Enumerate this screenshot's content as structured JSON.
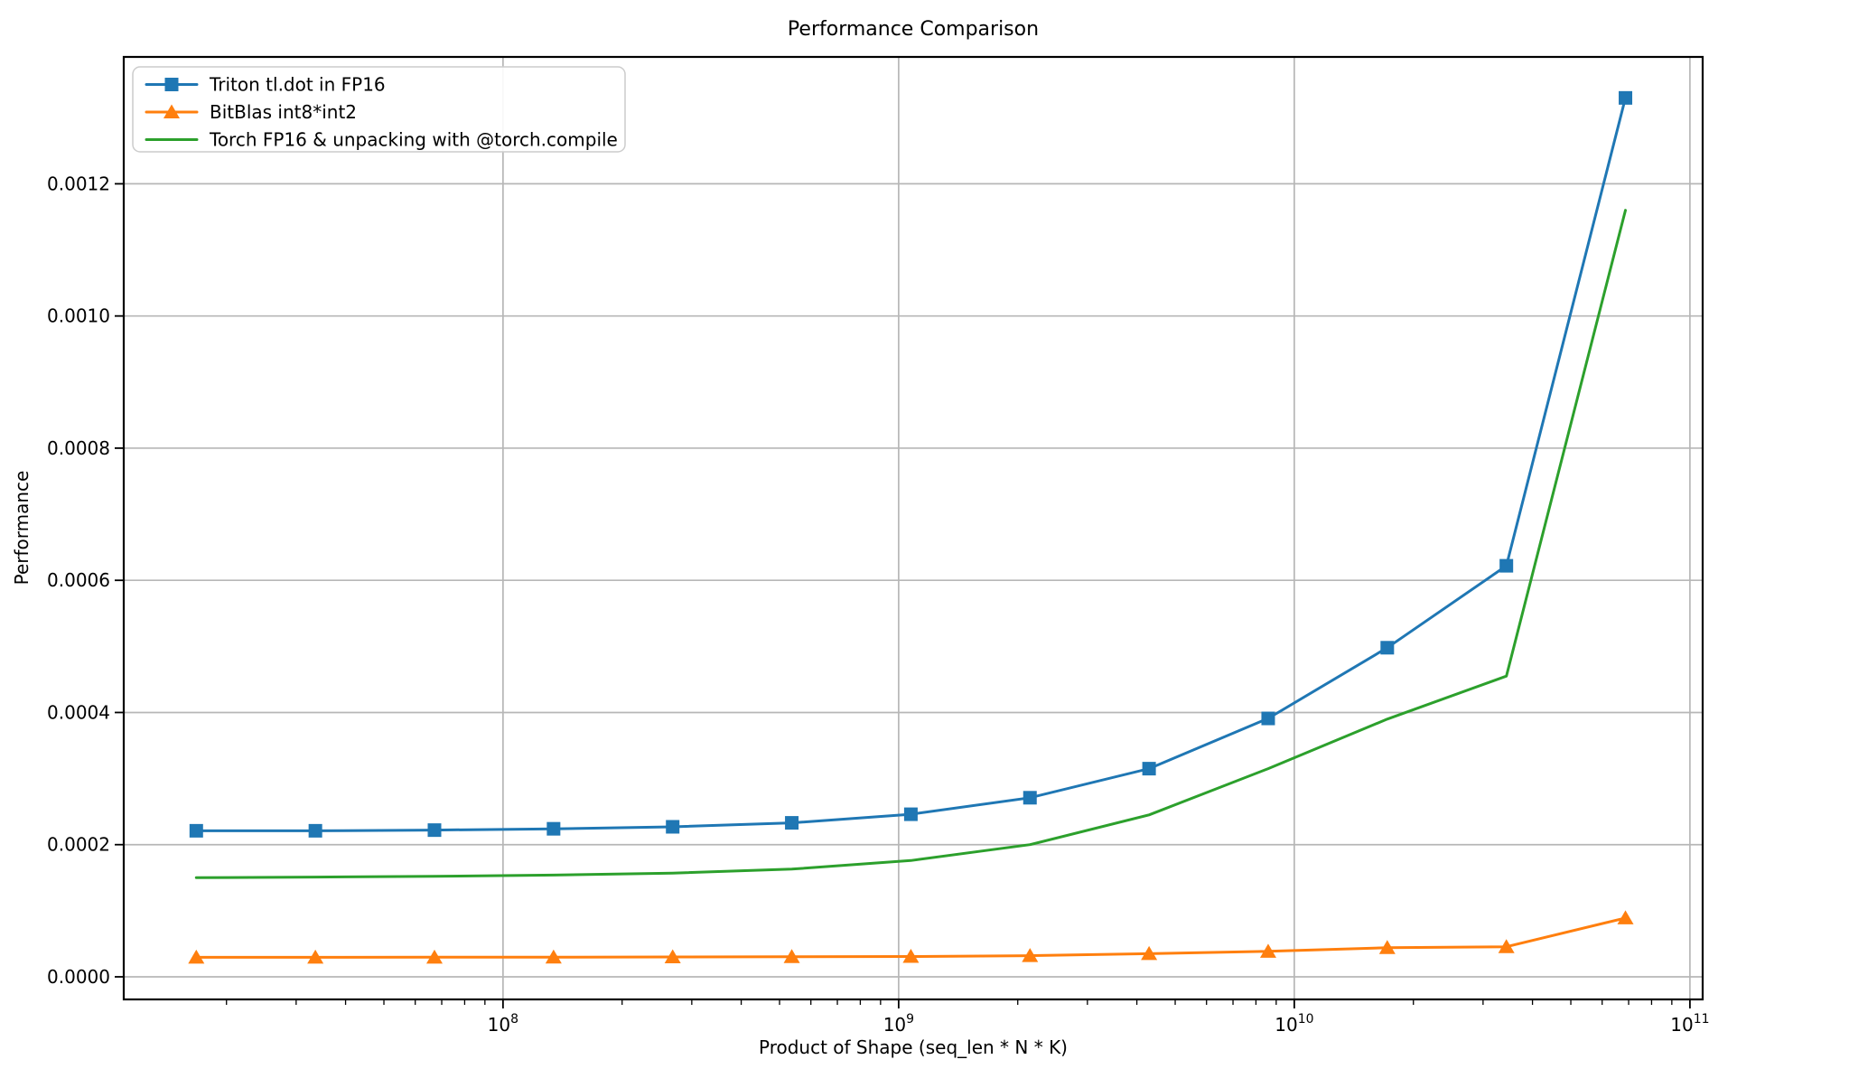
{
  "figure": {
    "background": "#ffffff",
    "title": "Performance Comparison"
  },
  "chart_data": {
    "type": "line",
    "title": "Performance Comparison",
    "xlabel": "Product of Shape (seq_len * N * K)",
    "ylabel": "Performance",
    "x_scale": "log",
    "grid": true,
    "legend_position": "upper-left",
    "xlim": [
      11000000,
      107700000000
    ],
    "ylim": [
      -3.42e-05,
      0.001392
    ],
    "x": [
      16777216,
      33554432,
      67108864,
      134217728,
      268435456,
      536870912,
      1073741824,
      2147483648,
      4294967296,
      8589934592,
      17179869184,
      34359738368,
      68719476736
    ],
    "series": [
      {
        "name": "Triton tl.dot in FP16",
        "color": "#1f77b4",
        "marker": "square",
        "values": [
          0.000221,
          0.000221,
          0.000222,
          0.000224,
          0.000227,
          0.000233,
          0.000246,
          0.000271,
          0.000315,
          0.000391,
          0.000498,
          0.000622,
          0.00133
        ]
      },
      {
        "name": "BitBlas int8*int2",
        "color": "#ff7f0e",
        "marker": "triangle",
        "values": [
          2.95e-05,
          2.95e-05,
          2.96e-05,
          2.97e-05,
          3e-05,
          3.04e-05,
          3.08e-05,
          3.2e-05,
          3.5e-05,
          3.85e-05,
          4.4e-05,
          4.55e-05,
          8.9e-05
        ]
      },
      {
        "name": "Torch FP16 & unpacking with @torch.compile",
        "color": "#2ca02c",
        "marker": "none",
        "values": [
          0.00015,
          0.000151,
          0.000152,
          0.000154,
          0.000157,
          0.000163,
          0.000176,
          0.0002,
          0.000245,
          0.000315,
          0.00039,
          0.000455,
          0.00116
        ]
      }
    ],
    "x_ticks": [
      {
        "value": 100000000,
        "mantissa": "10",
        "exp": "8"
      },
      {
        "value": 1000000000,
        "mantissa": "10",
        "exp": "9"
      },
      {
        "value": 10000000000,
        "mantissa": "10",
        "exp": "10"
      },
      {
        "value": 100000000000,
        "mantissa": "10",
        "exp": "11"
      }
    ],
    "y_ticks": [
      {
        "value": 0.0,
        "label": "0.0000"
      },
      {
        "value": 0.0002,
        "label": "0.0002"
      },
      {
        "value": 0.0004,
        "label": "0.0004"
      },
      {
        "value": 0.0006,
        "label": "0.0006"
      },
      {
        "value": 0.0008,
        "label": "0.0008"
      },
      {
        "value": 0.001,
        "label": "0.0010"
      },
      {
        "value": 0.0012,
        "label": "0.0012"
      }
    ]
  },
  "colors": {
    "grid": "#b7b7b7",
    "spine": "#000000",
    "tick": "#000000",
    "text": "#000000",
    "legend_border": "#cccccc",
    "legend_bg": "#ffffff"
  }
}
